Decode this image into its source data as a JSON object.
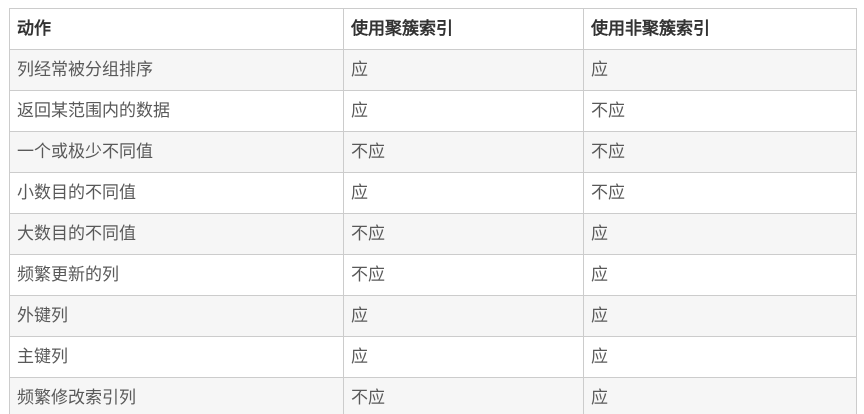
{
  "table": {
    "columns": [
      {
        "label": "动作"
      },
      {
        "label": "使用聚簇索引"
      },
      {
        "label": "使用非聚簇索引"
      }
    ],
    "rows": [
      {
        "action": "列经常被分组排序",
        "clustered": "应",
        "nonclustered": "应"
      },
      {
        "action": "返回某范围内的数据",
        "clustered": "应",
        "nonclustered": "不应"
      },
      {
        "action": "一个或极少不同值",
        "clustered": "不应",
        "nonclustered": "不应"
      },
      {
        "action": "小数目的不同值",
        "clustered": "应",
        "nonclustered": "不应"
      },
      {
        "action": "大数目的不同值",
        "clustered": "不应",
        "nonclustered": "应"
      },
      {
        "action": "频繁更新的列",
        "clustered": "不应",
        "nonclustered": "应"
      },
      {
        "action": "外键列",
        "clustered": "应",
        "nonclustered": "应"
      },
      {
        "action": "主键列",
        "clustered": "应",
        "nonclustered": "应"
      },
      {
        "action": "频繁修改索引列",
        "clustered": "不应",
        "nonclustered": "应"
      }
    ],
    "colors": {
      "border": "#cccccc",
      "stripe": "#f6f6f6",
      "header_text": "#333333",
      "body_text": "#595959"
    }
  }
}
